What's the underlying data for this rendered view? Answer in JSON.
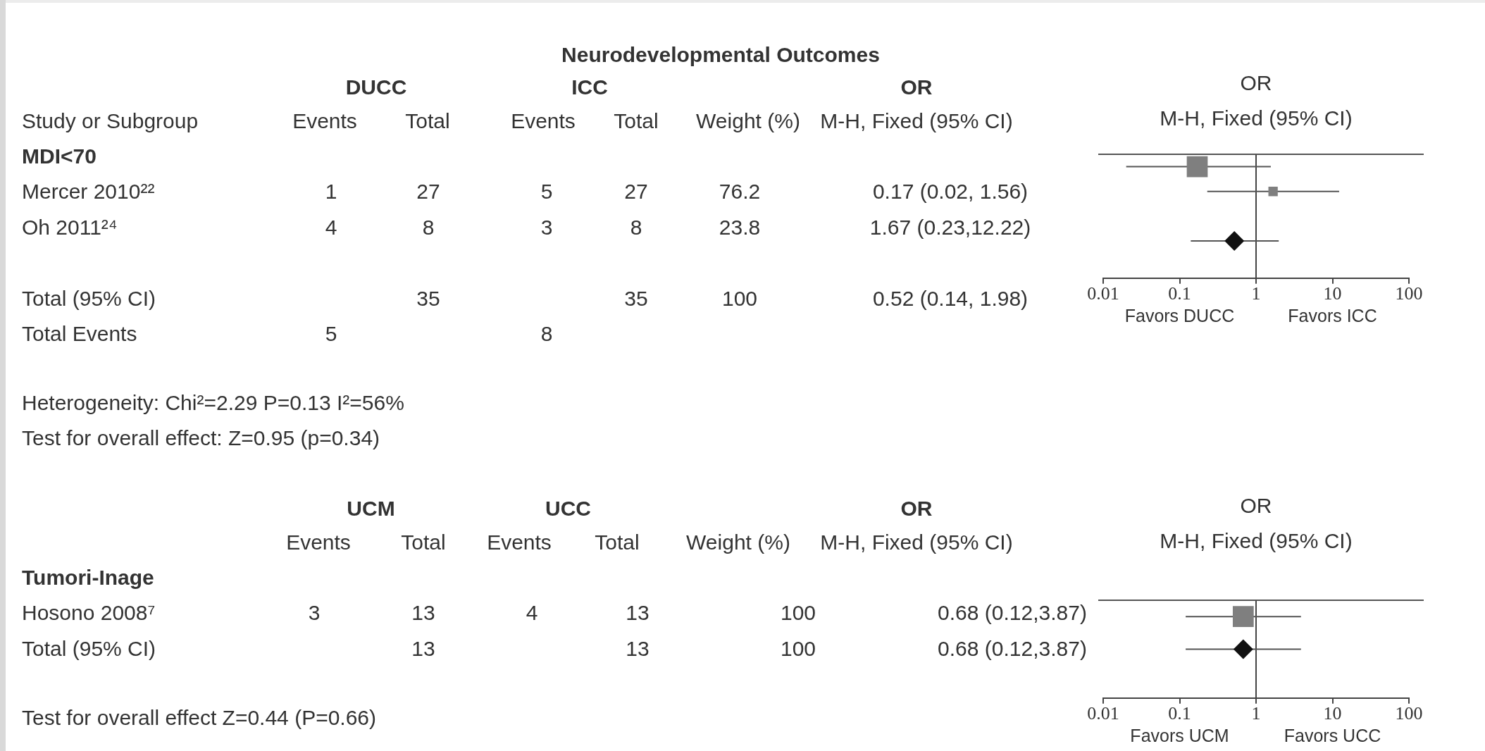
{
  "chart_data": [
    {
      "type": "other",
      "title": "Neurodevelopmental Outcomes",
      "ylabel": "Study or Subgroup",
      "categories": [
        "MDI<70",
        "Mercer 2010²²",
        "Oh 2011²⁴",
        null,
        "Total (95% CI)",
        "Total Events"
      ],
      "series": [
        {
          "name": "Events",
          "values": [
            null,
            1,
            4,
            null,
            null,
            5
          ]
        },
        {
          "name": "Total",
          "values": [
            null,
            27,
            8,
            null,
            35,
            null
          ]
        },
        {
          "name": "Events",
          "values": [
            null,
            5,
            3,
            null,
            null,
            8
          ]
        },
        {
          "name": "Total",
          "values": [
            null,
            27,
            8,
            null,
            35,
            null
          ]
        },
        {
          "name": "Weight (%)",
          "values": [
            null,
            76.2,
            23.8,
            null,
            100,
            null
          ]
        },
        {
          "name": "M-H, Fixed (95% CI)",
          "values": [
            null,
            0.17,
            1.67,
            null,
            0.52,
            null
          ],
          "value_labels": [
            null,
            "0.17 (0.02, 1.56)",
            "1.67 (0.23,12.22)",
            null,
            "0.52 (0.14, 1.98)",
            null
          ]
        }
      ],
      "data_labels": true,
      "annotations": [
        "DUCC",
        "ICC",
        "OR",
        "Heterogeneity: Chi²=2.29 P=0.13 I²=56%",
        "Test for overall effect: Z=0.95 (p=0.34)"
      ]
    },
    {
      "type": "scatter",
      "title": "OR",
      "subtitle": "M-H, Fixed (95% CI)",
      "orientation": "horizontal",
      "categories": [
        null,
        null,
        null,
        null,
        null
      ],
      "series": [
        {
          "marker": "square",
          "color": "#7f7f7f",
          "values": [
            0.17,
            1.67,
            null,
            null,
            null
          ],
          "errors": [
            [
              0.02,
              1.56
            ],
            [
              0.23,
              12.22
            ],
            null,
            null,
            null
          ],
          "sizes": [
            1,
            0.2,
            null,
            null,
            null
          ]
        },
        {
          "marker": "diamond",
          "color": "#111111",
          "values": [
            null,
            null,
            null,
            0.52,
            null
          ],
          "errors": [
            null,
            null,
            null,
            [
              0.14,
              1.98
            ],
            null
          ]
        }
      ],
      "log": "x",
      "xlim": [
        0.01,
        100
      ],
      "xticks": [
        0.01,
        0.1,
        1,
        10,
        100
      ],
      "ref_lines": [
        {
          "axis": "x",
          "value": 1
        }
      ],
      "annotations": [
        "Favors DUCC",
        "Favors ICC"
      ]
    },
    {
      "type": "other",
      "categories": [
        "Tumori-Inage",
        "Hosono 2008⁷",
        "Total (95% CI)"
      ],
      "series": [
        {
          "name": "Events",
          "values": [
            null,
            3,
            null
          ]
        },
        {
          "name": "Total",
          "values": [
            null,
            13,
            13
          ]
        },
        {
          "name": "Events",
          "values": [
            null,
            4,
            null
          ]
        },
        {
          "name": "Total",
          "values": [
            null,
            13,
            13
          ]
        },
        {
          "name": "Weight (%)",
          "values": [
            null,
            100,
            100
          ]
        },
        {
          "name": "M-H, Fixed (95% CI)",
          "values": [
            null,
            0.68,
            0.68
          ],
          "value_labels": [
            null,
            "0.68 (0.12,3.87)",
            "0.68 (0.12,3.87)"
          ]
        }
      ],
      "data_labels": true,
      "annotations": [
        "UCM",
        "UCC",
        "OR",
        "Test for overall effect Z=0.44 (P=0.66)"
      ]
    },
    {
      "type": "scatter",
      "title": "OR",
      "subtitle": "M-H, Fixed (95% CI)",
      "orientation": "horizontal",
      "categories": [
        null,
        null,
        null
      ],
      "series": [
        {
          "marker": "square",
          "color": "#7f7f7f",
          "values": [
            0.68,
            null,
            null
          ],
          "errors": [
            [
              0.12,
              3.87
            ],
            null,
            null
          ],
          "sizes": [
            1,
            null,
            null
          ]
        },
        {
          "marker": "diamond",
          "color": "#111111",
          "values": [
            null,
            0.68,
            null
          ],
          "errors": [
            null,
            [
              0.12,
              3.87
            ],
            null
          ]
        }
      ],
      "log": "x",
      "xlim": [
        0.01,
        100
      ],
      "xticks": [
        0.01,
        0.1,
        1,
        10,
        100
      ],
      "ref_lines": [
        {
          "axis": "x",
          "value": 1
        }
      ],
      "annotations": [
        "Favors UCM",
        "Favors UCC"
      ]
    }
  ]
}
